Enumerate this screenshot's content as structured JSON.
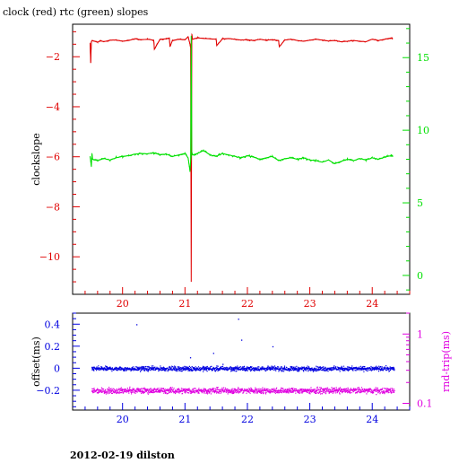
{
  "footer": "2012-02-19 dilston",
  "colors": {
    "red": "#e00000",
    "green": "#00e000",
    "blue": "#0000e0",
    "magenta": "#e000e0",
    "black": "#000000"
  },
  "chart_data": [
    {
      "type": "line",
      "title": "clock (red) rtc (green) slopes",
      "ylabel": "clockslope",
      "xlim": [
        19.2,
        24.6
      ],
      "ylim": [
        -11.5,
        -0.7
      ],
      "y2lim": [
        -1.3,
        17.3
      ],
      "x_ticks": [
        20,
        21,
        22,
        23,
        24
      ],
      "y_ticks": [
        -2,
        -4,
        -6,
        -8,
        -10
      ],
      "y2_ticks": [
        15,
        10,
        5,
        0
      ],
      "series": [
        {
          "name": "clock",
          "color": "red",
          "axis": "left",
          "x": [
            19.48,
            19.49,
            19.5,
            19.51,
            19.55,
            19.6,
            19.65,
            19.7,
            19.8,
            19.9,
            20.0,
            20.1,
            20.2,
            20.3,
            20.4,
            20.5,
            20.51,
            20.6,
            20.7,
            20.75,
            20.76,
            20.8,
            20.9,
            21.0,
            21.05,
            21.08,
            21.09,
            21.1,
            21.11,
            21.12,
            21.2,
            21.3,
            21.4,
            21.5,
            21.51,
            21.6,
            21.7,
            21.8,
            21.9,
            22.0,
            22.1,
            22.2,
            22.3,
            22.4,
            22.5,
            22.51,
            22.6,
            22.7,
            22.8,
            22.9,
            23.0,
            23.1,
            23.2,
            23.3,
            23.4,
            23.5,
            23.6,
            23.7,
            23.8,
            23.9,
            24.0,
            24.1,
            24.2,
            24.3,
            24.33
          ],
          "y": [
            -1.45,
            -2.25,
            -1.4,
            -1.35,
            -1.38,
            -1.42,
            -1.36,
            -1.4,
            -1.34,
            -1.33,
            -1.38,
            -1.35,
            -1.28,
            -1.32,
            -1.3,
            -1.34,
            -1.7,
            -1.3,
            -1.28,
            -1.25,
            -1.6,
            -1.35,
            -1.3,
            -1.32,
            -1.2,
            -1.5,
            -1.65,
            -11.0,
            -1.1,
            -1.3,
            -1.25,
            -1.27,
            -1.28,
            -1.3,
            -1.55,
            -1.29,
            -1.27,
            -1.3,
            -1.33,
            -1.32,
            -1.35,
            -1.3,
            -1.34,
            -1.32,
            -1.35,
            -1.6,
            -1.33,
            -1.3,
            -1.35,
            -1.38,
            -1.34,
            -1.3,
            -1.33,
            -1.37,
            -1.35,
            -1.4,
            -1.38,
            -1.35,
            -1.38,
            -1.4,
            -1.3,
            -1.35,
            -1.3,
            -1.25,
            -1.28
          ]
        },
        {
          "name": "rtc",
          "color": "green",
          "axis": "right",
          "x": [
            19.48,
            19.5,
            19.51,
            19.52,
            19.6,
            19.7,
            19.8,
            19.9,
            20.0,
            20.1,
            20.2,
            20.3,
            20.4,
            20.5,
            20.6,
            20.7,
            20.8,
            20.9,
            21.0,
            21.05,
            21.08,
            21.09,
            21.1,
            21.11,
            21.12,
            21.2,
            21.3,
            21.4,
            21.5,
            21.6,
            21.7,
            21.8,
            21.9,
            22.0,
            22.1,
            22.2,
            22.3,
            22.4,
            22.5,
            22.6,
            22.7,
            22.8,
            22.9,
            23.0,
            23.1,
            23.2,
            23.3,
            23.4,
            23.5,
            23.6,
            23.7,
            23.8,
            23.9,
            24.0,
            24.1,
            24.2,
            24.3,
            24.33
          ],
          "y": [
            8.2,
            7.5,
            8.4,
            8.0,
            7.9,
            8.05,
            7.95,
            8.1,
            8.2,
            8.25,
            8.35,
            8.4,
            8.38,
            8.45,
            8.3,
            8.35,
            8.2,
            8.3,
            8.4,
            8.1,
            7.2,
            7.8,
            16.5,
            8.5,
            8.3,
            8.4,
            8.6,
            8.3,
            8.2,
            8.4,
            8.3,
            8.2,
            8.1,
            8.25,
            8.15,
            8.0,
            8.1,
            8.2,
            7.9,
            8.05,
            8.1,
            8.0,
            8.1,
            7.95,
            7.9,
            7.8,
            7.95,
            7.7,
            7.85,
            8.0,
            7.9,
            8.05,
            7.95,
            8.1,
            8.0,
            8.15,
            8.25,
            8.2
          ]
        }
      ]
    },
    {
      "type": "scatter",
      "ylabel": "offset(ms)",
      "y2label": "rnd-trip(ms)",
      "xlim": [
        19.2,
        24.6
      ],
      "ylim": [
        -0.38,
        0.5
      ],
      "y2lim_log": [
        0.08,
        2.0
      ],
      "x_ticks": [
        20,
        21,
        22,
        23,
        24
      ],
      "y_ticks": [
        0.4,
        0.2,
        0,
        -0.2
      ],
      "y_tick_labels": [
        "0.4",
        "0.2",
        "0",
        "−0.2"
      ],
      "y2_ticks": [
        1,
        0.1
      ],
      "series": [
        {
          "name": "offset",
          "color": "blue",
          "axis": "left",
          "x_range": [
            19.5,
            24.35
          ],
          "center": 0.0,
          "spread": 0.03
        },
        {
          "name": "rnd-trip",
          "color": "magenta",
          "axis": "right",
          "x_range": [
            19.5,
            24.35
          ],
          "center": 0.155,
          "spread": 0.025
        }
      ],
      "outliers": [
        {
          "x": 20.22,
          "y": 0.4,
          "series": "offset"
        },
        {
          "x": 21.08,
          "y": 0.1,
          "series": "offset"
        },
        {
          "x": 21.9,
          "y": 0.26,
          "series": "offset"
        },
        {
          "x": 21.45,
          "y": 0.14,
          "series": "offset"
        },
        {
          "x": 21.6,
          "y": 0.04,
          "series": "offset"
        },
        {
          "x": 22.4,
          "y": 0.2,
          "series": "offset"
        },
        {
          "x": 21.85,
          "y": 0.45,
          "series": "offset"
        }
      ]
    }
  ]
}
